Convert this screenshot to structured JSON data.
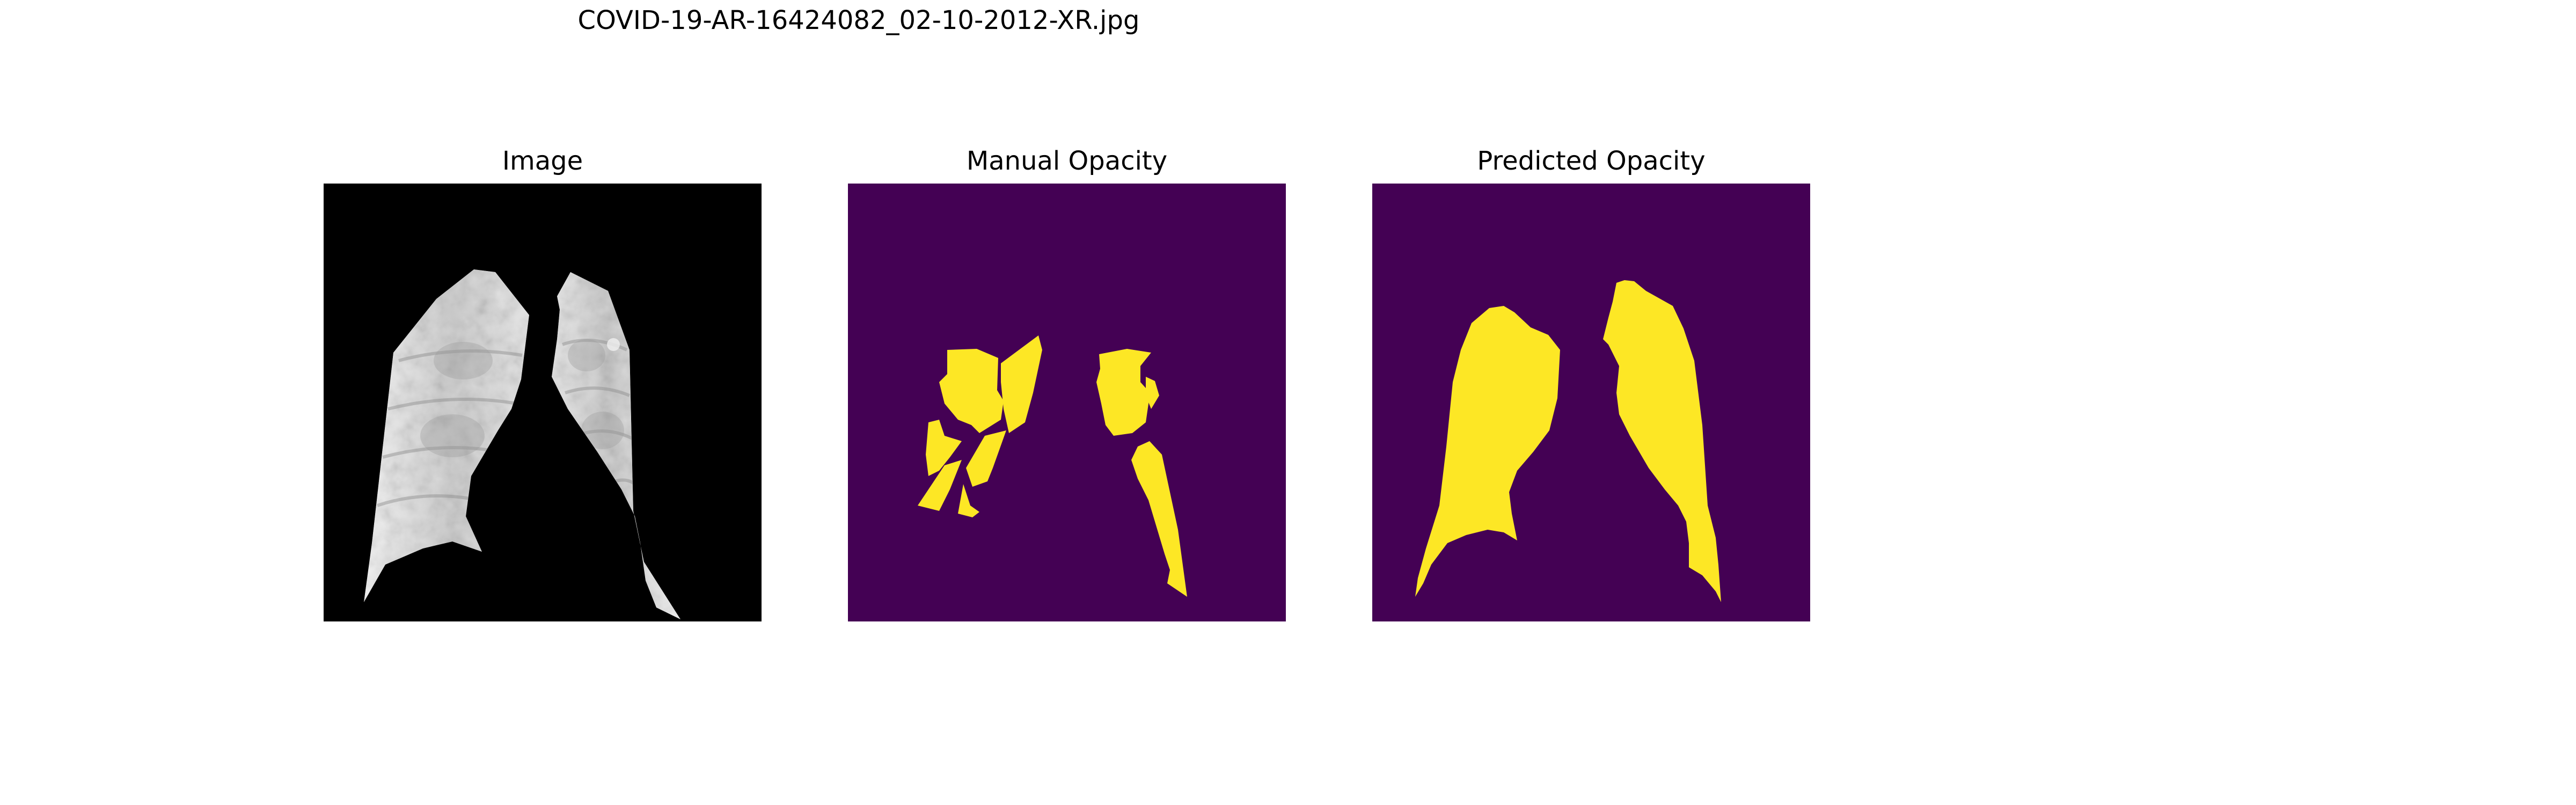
{
  "figure": {
    "suptitle": "COVID-19-AR-16424082_02-10-2012-XR.jpg"
  },
  "panels": [
    {
      "title": "Image"
    },
    {
      "title": "Manual Opacity"
    },
    {
      "title": "Predicted Opacity"
    }
  ],
  "colors": {
    "figure_background": "#ffffff",
    "image_background": "#000000",
    "mask_background": "#440154",
    "mask_foreground": "#fde725"
  }
}
